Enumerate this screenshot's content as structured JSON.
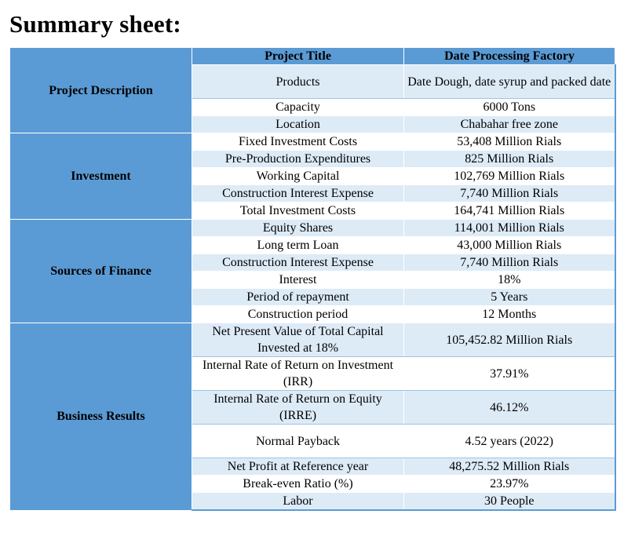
{
  "title": "Summary sheet:",
  "header": {
    "label": "Project Title",
    "value": "Date Processing Factory"
  },
  "sections": {
    "project_description": "Project Description",
    "investment": "Investment",
    "sources_of_finance": "Sources of Finance",
    "business_results": "Business Results"
  },
  "rows": [
    {
      "label": "Products",
      "value": "Date Dough, date syrup and packed date"
    },
    {
      "label": "Capacity",
      "value": "6000 Tons"
    },
    {
      "label": "Location",
      "value": "Chabahar free zone"
    },
    {
      "label": "Fixed Investment Costs",
      "value": "53,408 Million Rials"
    },
    {
      "label": "Pre-Production Expenditures",
      "value": "825 Million Rials"
    },
    {
      "label": "Working Capital",
      "value": "102,769 Million Rials"
    },
    {
      "label": "Construction Interest Expense",
      "value": "7,740 Million Rials"
    },
    {
      "label": "Total Investment Costs",
      "value": "164,741 Million Rials"
    },
    {
      "label": "Equity Shares",
      "value": "114,001 Million Rials"
    },
    {
      "label": "Long term Loan",
      "value": "43,000 Million Rials"
    },
    {
      "label": "Construction Interest Expense",
      "value": "7,740 Million Rials"
    },
    {
      "label": "Interest",
      "value": "18%"
    },
    {
      "label": "Period of repayment",
      "value": "5 Years"
    },
    {
      "label": "Construction period",
      "value": "12 Months"
    },
    {
      "label": "Net Present Value of Total Capital Invested at 18%",
      "value": "105,452.82 Million Rials"
    },
    {
      "label": "Internal Rate of Return on Investment (IRR)",
      "value": "37.91%"
    },
    {
      "label": "Internal Rate of  Return on Equity (IRRE)",
      "value": "46.12%"
    },
    {
      "label": "Normal Payback",
      "value": "4.52 years (2022)"
    },
    {
      "label": "Net Profit at Reference year",
      "value": "48,275.52 Million Rials"
    },
    {
      "label": "Break-even Ratio (%)",
      "value": "23.97%"
    },
    {
      "label": "Labor",
      "value": "30 People"
    }
  ],
  "colors": {
    "section_fill": "#5b9bd5",
    "band_fill": "#ddebf7",
    "white": "#ffffff"
  }
}
